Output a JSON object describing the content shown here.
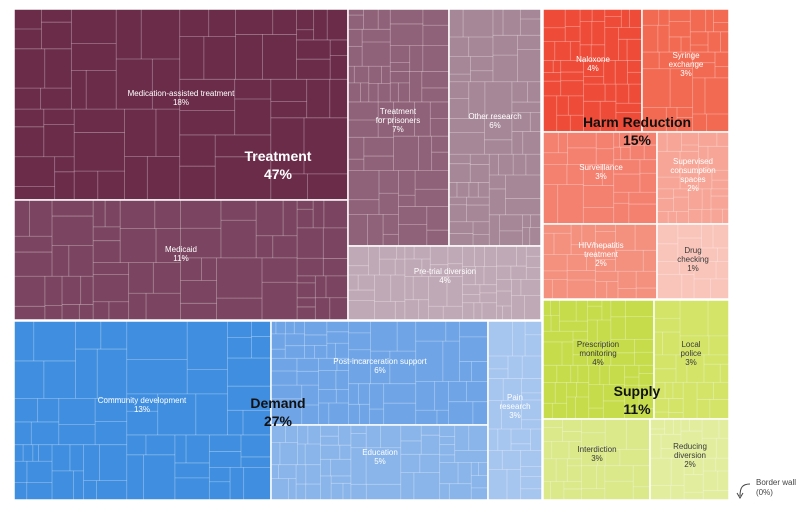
{
  "chart_data": {
    "type": "treemap",
    "title": "",
    "groups": [
      {
        "name": "Treatment",
        "percent": "47%",
        "color": "#6e2f4c",
        "children": [
          {
            "name": "Medication-assisted treatment",
            "percent": "18%",
            "value": 18,
            "color": "#6b2c4a"
          },
          {
            "name": "Medicaid",
            "percent": "11%",
            "value": 11,
            "color": "#7b4561"
          },
          {
            "name": "Treatment for prisoners",
            "percent": "7%",
            "value": 7,
            "color": "#8f6279"
          },
          {
            "name": "Other research",
            "percent": "6%",
            "value": 6,
            "color": "#a68797"
          },
          {
            "name": "Pre-trial diversion",
            "percent": "4%",
            "value": 4,
            "color": "#c0a9b6"
          }
        ]
      },
      {
        "name": "Demand",
        "percent": "27%",
        "color": "#3f8ee0",
        "children": [
          {
            "name": "Community development",
            "percent": "13%",
            "value": 13,
            "color": "#3f8ee0"
          },
          {
            "name": "Post-incarceration support",
            "percent": "6%",
            "value": 6,
            "color": "#6fa5e6"
          },
          {
            "name": "Education",
            "percent": "5%",
            "value": 5,
            "color": "#8ab5ea"
          },
          {
            "name": "Pain research",
            "percent": "3%",
            "value": 3,
            "color": "#a7c6ef"
          }
        ]
      },
      {
        "name": "Harm Reduction",
        "percent": "15%",
        "color": "#ef4d3a",
        "children": [
          {
            "name": "Naloxone",
            "percent": "4%",
            "value": 4,
            "color": "#ee4c38"
          },
          {
            "name": "Syringe exchange",
            "percent": "3%",
            "value": 3,
            "color": "#f26a52"
          },
          {
            "name": "Surveillance",
            "percent": "3%",
            "value": 3,
            "color": "#f48170"
          },
          {
            "name": "HIV/hepatitis treatment",
            "percent": "2%",
            "value": 2,
            "color": "#f4907e"
          },
          {
            "name": "Supervised consumption spaces",
            "percent": "2%",
            "value": 2,
            "color": "#f6a596"
          },
          {
            "name": "Drug checking",
            "percent": "1%",
            "value": 1,
            "color": "#f9c4b9"
          }
        ]
      },
      {
        "name": "Supply",
        "percent": "11%",
        "color": "#c9df4e",
        "children": [
          {
            "name": "Prescription monitoring",
            "percent": "4%",
            "value": 4,
            "color": "#c6dc4a"
          },
          {
            "name": "Local police",
            "percent": "3%",
            "value": 3,
            "color": "#d3e468"
          },
          {
            "name": "Interdiction",
            "percent": "3%",
            "value": 3,
            "color": "#dbe98a"
          },
          {
            "name": "Reducing diversion",
            "percent": "2%",
            "value": 2,
            "color": "#e2ed9e"
          }
        ]
      }
    ],
    "annotation": {
      "name": "Border wall",
      "percent": "(0%)"
    }
  }
}
